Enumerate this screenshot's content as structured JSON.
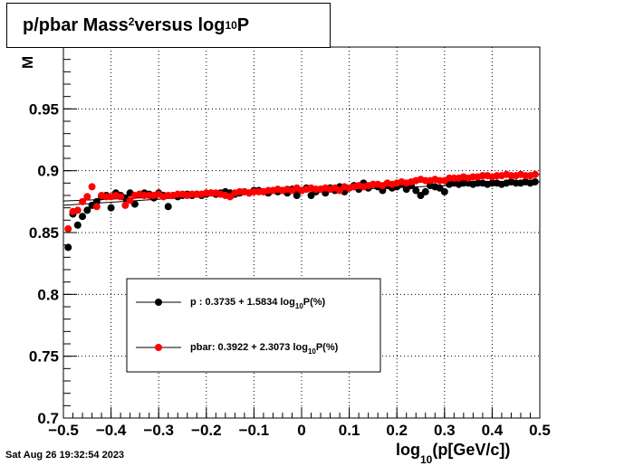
{
  "timestamp": "Sat Aug 26 19:32:54 2023",
  "title": {
    "main": "p/pbar Mass",
    "sup": "2",
    "mid": " versus log",
    "sub": "10",
    "end": "P"
  },
  "xlabel": {
    "main": "log",
    "sub": "10",
    "end": "(p[GeV/c])"
  },
  "ylabel": "M",
  "colors": {
    "p": "#000000",
    "pbar": "#ff0000",
    "axis": "#000000"
  },
  "legend": {
    "p": {
      "label": "p   : 0.3735 + 1.5834 log",
      "sub": "10",
      "tail": "P(%)"
    },
    "pbar": {
      "label": "pbar: 0.3922 + 2.3073 log",
      "sub": "10",
      "tail": "P(%)"
    }
  },
  "chart_data": {
    "type": "scatter",
    "xlim": [
      -0.5,
      0.5
    ],
    "ylim": [
      0.7,
      1.0
    ],
    "xticks": [
      "−0.5",
      "−0.4",
      "−0.3",
      "−0.2",
      "−0.1",
      "0",
      "0.1",
      "0.2",
      "0.3",
      "0.4",
      "0.5"
    ],
    "xtick_values": [
      -0.5,
      -0.4,
      -0.3,
      -0.2,
      -0.1,
      0,
      0.1,
      0.2,
      0.3,
      0.4,
      0.5
    ],
    "yticks": [
      "0.7",
      "0.75",
      "0.8",
      "0.85",
      "0.9",
      "0.95"
    ],
    "ytick_values": [
      0.7,
      0.75,
      0.8,
      0.85,
      0.9,
      0.95
    ],
    "grid": true,
    "fits": [
      {
        "name": "p",
        "y_at_xmin": 0.8755,
        "y_at_xmax": 0.891
      },
      {
        "name": "pbar",
        "y_at_xmin": 0.872,
        "y_at_xmax": 0.897
      }
    ],
    "series": [
      {
        "name": "p",
        "x": [
          -0.49,
          -0.48,
          -0.47,
          -0.46,
          -0.45,
          -0.44,
          -0.43,
          -0.42,
          -0.41,
          -0.4,
          -0.39,
          -0.38,
          -0.37,
          -0.36,
          -0.35,
          -0.34,
          -0.33,
          -0.32,
          -0.31,
          -0.3,
          -0.29,
          -0.28,
          -0.27,
          -0.26,
          -0.25,
          -0.24,
          -0.23,
          -0.22,
          -0.21,
          -0.2,
          -0.19,
          -0.18,
          -0.17,
          -0.16,
          -0.15,
          -0.14,
          -0.13,
          -0.12,
          -0.11,
          -0.1,
          -0.09,
          -0.08,
          -0.07,
          -0.06,
          -0.05,
          -0.04,
          -0.03,
          -0.02,
          -0.01,
          0.0,
          0.01,
          0.02,
          0.03,
          0.04,
          0.05,
          0.06,
          0.07,
          0.08,
          0.09,
          0.1,
          0.11,
          0.12,
          0.13,
          0.14,
          0.15,
          0.16,
          0.17,
          0.18,
          0.19,
          0.2,
          0.21,
          0.22,
          0.23,
          0.24,
          0.25,
          0.26,
          0.27,
          0.28,
          0.29,
          0.3,
          0.31,
          0.32,
          0.33,
          0.34,
          0.35,
          0.36,
          0.37,
          0.38,
          0.39,
          0.4,
          0.41,
          0.42,
          0.43,
          0.44,
          0.45,
          0.46,
          0.47,
          0.48,
          0.49
        ],
        "y": [
          0.838,
          0.865,
          0.856,
          0.863,
          0.868,
          0.872,
          0.875,
          0.879,
          0.88,
          0.87,
          0.882,
          0.88,
          0.878,
          0.882,
          0.873,
          0.881,
          0.882,
          0.881,
          0.878,
          0.882,
          0.88,
          0.871,
          0.88,
          0.879,
          0.88,
          0.881,
          0.88,
          0.881,
          0.88,
          0.881,
          0.882,
          0.881,
          0.882,
          0.883,
          0.882,
          0.881,
          0.882,
          0.883,
          0.882,
          0.884,
          0.884,
          0.883,
          0.882,
          0.884,
          0.883,
          0.884,
          0.882,
          0.885,
          0.88,
          0.884,
          0.886,
          0.88,
          0.883,
          0.885,
          0.882,
          0.886,
          0.884,
          0.887,
          0.883,
          0.886,
          0.888,
          0.885,
          0.89,
          0.886,
          0.889,
          0.887,
          0.884,
          0.888,
          0.886,
          0.887,
          0.889,
          0.885,
          0.888,
          0.884,
          0.88,
          0.883,
          0.888,
          0.887,
          0.886,
          0.883,
          0.889,
          0.89,
          0.889,
          0.89,
          0.89,
          0.889,
          0.89,
          0.89,
          0.889,
          0.89,
          0.89,
          0.889,
          0.89,
          0.891,
          0.89,
          0.89,
          0.891,
          0.89,
          0.891
        ]
      },
      {
        "name": "pbar",
        "x": [
          -0.49,
          -0.48,
          -0.47,
          -0.46,
          -0.45,
          -0.44,
          -0.43,
          -0.42,
          -0.41,
          -0.4,
          -0.39,
          -0.38,
          -0.37,
          -0.36,
          -0.35,
          -0.34,
          -0.33,
          -0.32,
          -0.31,
          -0.3,
          -0.29,
          -0.28,
          -0.27,
          -0.26,
          -0.25,
          -0.24,
          -0.23,
          -0.22,
          -0.21,
          -0.2,
          -0.19,
          -0.18,
          -0.17,
          -0.16,
          -0.15,
          -0.14,
          -0.13,
          -0.12,
          -0.11,
          -0.1,
          -0.09,
          -0.08,
          -0.07,
          -0.06,
          -0.05,
          -0.04,
          -0.03,
          -0.02,
          -0.01,
          0.0,
          0.01,
          0.02,
          0.03,
          0.04,
          0.05,
          0.06,
          0.07,
          0.08,
          0.09,
          0.1,
          0.11,
          0.12,
          0.13,
          0.14,
          0.15,
          0.16,
          0.17,
          0.18,
          0.19,
          0.2,
          0.21,
          0.22,
          0.23,
          0.24,
          0.25,
          0.26,
          0.27,
          0.28,
          0.29,
          0.3,
          0.31,
          0.32,
          0.33,
          0.34,
          0.35,
          0.36,
          0.37,
          0.38,
          0.39,
          0.4,
          0.41,
          0.42,
          0.43,
          0.44,
          0.45,
          0.46,
          0.47,
          0.48,
          0.49
        ],
        "y": [
          0.853,
          0.867,
          0.868,
          0.875,
          0.879,
          0.887,
          0.871,
          0.88,
          0.879,
          0.879,
          0.88,
          0.879,
          0.872,
          0.876,
          0.88,
          0.881,
          0.88,
          0.88,
          0.88,
          0.881,
          0.879,
          0.88,
          0.88,
          0.881,
          0.881,
          0.88,
          0.881,
          0.881,
          0.881,
          0.882,
          0.882,
          0.882,
          0.881,
          0.88,
          0.879,
          0.882,
          0.883,
          0.883,
          0.882,
          0.883,
          0.883,
          0.883,
          0.884,
          0.884,
          0.885,
          0.884,
          0.885,
          0.884,
          0.886,
          0.884,
          0.885,
          0.886,
          0.885,
          0.885,
          0.886,
          0.885,
          0.886,
          0.884,
          0.887,
          0.886,
          0.887,
          0.888,
          0.887,
          0.888,
          0.889,
          0.889,
          0.888,
          0.89,
          0.889,
          0.89,
          0.891,
          0.89,
          0.891,
          0.892,
          0.893,
          0.892,
          0.892,
          0.893,
          0.892,
          0.892,
          0.894,
          0.894,
          0.894,
          0.895,
          0.894,
          0.895,
          0.895,
          0.896,
          0.896,
          0.895,
          0.896,
          0.896,
          0.897,
          0.896,
          0.896,
          0.897,
          0.896,
          0.896,
          0.897
        ]
      }
    ]
  }
}
